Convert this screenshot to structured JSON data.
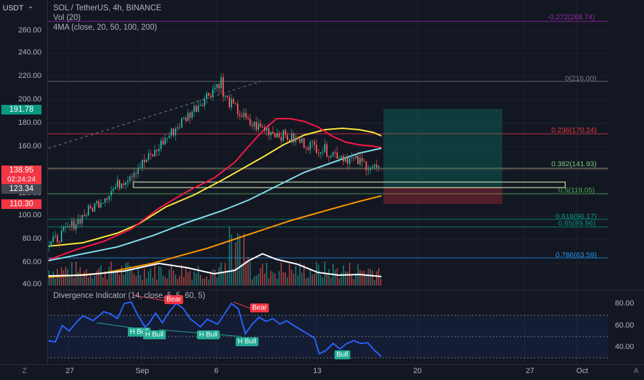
{
  "header": {
    "symbol_line": "SOL / TetherUS, 4h, BINANCE",
    "volume_line": "Vol (20)",
    "ma_line": "4MA (close, 20, 50, 100, 200)",
    "currency": "USDT",
    "currency_icon": "chevron-down-icon"
  },
  "price_axis": {
    "ticks": [
      "260.00",
      "240.00",
      "220.00",
      "200.00",
      "180.00",
      "160.00",
      "120.00",
      "100.00",
      "80.00",
      "60.00",
      "40.00"
    ],
    "tags": {
      "high": "191.78",
      "current": "138.95",
      "countdown": "02:24:24",
      "mid": "123.34",
      "stop": "110.30"
    }
  },
  "fib_levels": [
    {
      "label": "-0.272(268.74)",
      "color": "#9c27b0"
    },
    {
      "label": "0(216.00)",
      "color": "#787b86"
    },
    {
      "label": "0.236(170.24)",
      "color": "#f23645"
    },
    {
      "label": "0.382(141.93)",
      "color": "#81c784"
    },
    {
      "label": "0.5(119.05)",
      "color": "#4caf50"
    },
    {
      "label": "0.618(96.17)",
      "color": "#089981"
    },
    {
      "label": "0.65(89.96)",
      "color": "#089981"
    },
    {
      "label": "0.786(63.59)",
      "color": "#2196f3"
    }
  ],
  "indicator": {
    "title": "Divergence Indicator (14, close, 5, 5, 60, 5)",
    "ticks": [
      "80.00",
      "60.00",
      "40.00"
    ],
    "labels": {
      "bear1": "Bear",
      "bear2": "Bear",
      "hbull1": "H Bull",
      "hbull2": "H Bull",
      "hbull3": "H Bull",
      "hbull4": "H Bull",
      "bull": "Bull"
    }
  },
  "time_axis": {
    "ticks": [
      "27",
      "Sep",
      "6",
      "13",
      "20",
      "27",
      "Oct"
    ],
    "corner_left": "Z",
    "corner_right": "A"
  },
  "colors": {
    "bull_candle": "#26a69a",
    "bear_candle": "#ef5350",
    "ma20": "#ff1744",
    "ma50": "#ffeb3b",
    "ma100": "#80deea",
    "ma200": "#ff9800",
    "vol_ma": "#ffffff",
    "rsi": "#2962ff"
  }
}
